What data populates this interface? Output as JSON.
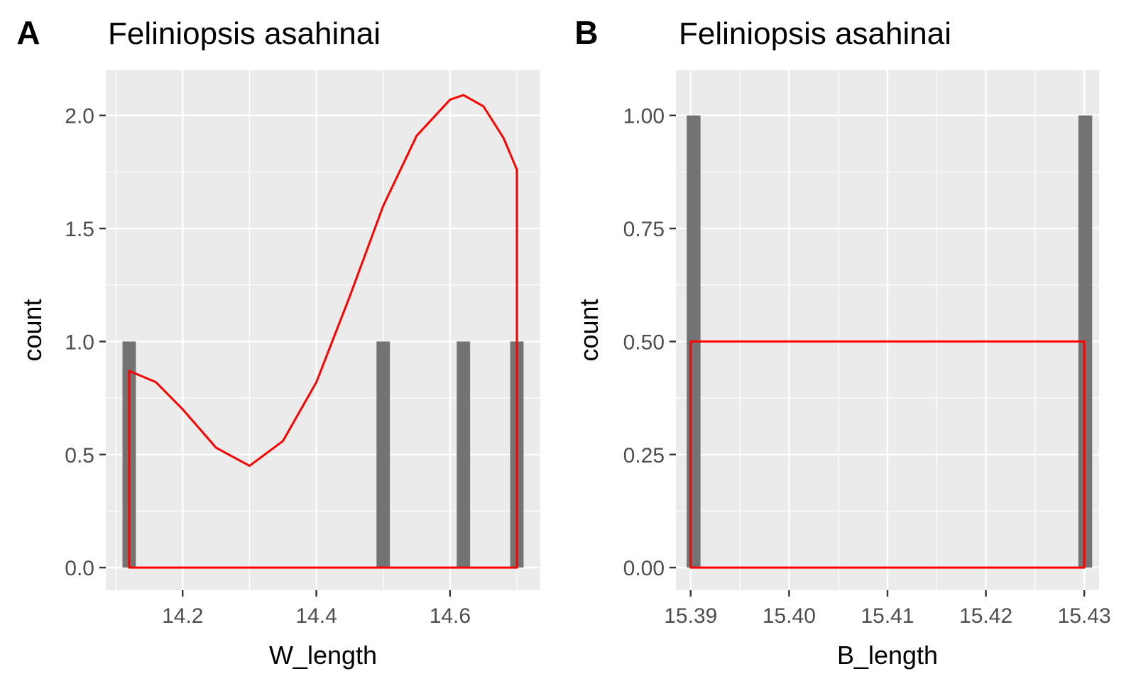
{
  "chart_data": [
    {
      "panel_tag": "A",
      "type": "bar",
      "title": "Feliniopsis asahinai",
      "xlabel": "W_length",
      "ylabel": "count",
      "xlim": [
        14.085,
        14.735
      ],
      "ylim": [
        -0.1,
        2.2
      ],
      "x_major_ticks": [
        14.2,
        14.4,
        14.6
      ],
      "x_tick_labels": [
        "14.2",
        "14.4",
        "14.6"
      ],
      "x_minor_ticks": [
        14.1,
        14.3,
        14.5,
        14.7
      ],
      "y_major_ticks": [
        0.0,
        0.5,
        1.0,
        1.5,
        2.0
      ],
      "y_tick_labels": [
        "0.0",
        "0.5",
        "1.0",
        "1.5",
        "2.0"
      ],
      "y_minor_ticks": [
        0.25,
        0.75,
        1.25,
        1.75
      ],
      "grid": true,
      "bar_width": 0.02,
      "bars": [
        {
          "x": 14.12,
          "count": 1
        },
        {
          "x": 14.5,
          "count": 1
        },
        {
          "x": 14.62,
          "count": 1
        },
        {
          "x": 14.7,
          "count": 1
        }
      ],
      "bar_color": "#737373",
      "overlay": {
        "type": "density",
        "color": "#ff0000",
        "x": [
          14.12,
          14.16,
          14.2,
          14.25,
          14.3,
          14.35,
          14.4,
          14.45,
          14.5,
          14.55,
          14.6,
          14.62,
          14.65,
          14.68,
          14.7
        ],
        "y": [
          0.87,
          0.82,
          0.7,
          0.53,
          0.45,
          0.56,
          0.82,
          1.2,
          1.6,
          1.91,
          2.07,
          2.09,
          2.04,
          1.9,
          1.76
        ]
      }
    },
    {
      "panel_tag": "B",
      "type": "bar",
      "title": "Feliniopsis asahinai",
      "xlabel": "B_length",
      "ylabel": "count",
      "xlim": [
        15.3885,
        15.4315
      ],
      "ylim": [
        -0.05,
        1.1
      ],
      "x_major_ticks": [
        15.39,
        15.4,
        15.41,
        15.42,
        15.43
      ],
      "x_tick_labels": [
        "15.39",
        "15.40",
        "15.41",
        "15.42",
        "15.43"
      ],
      "x_minor_ticks": [
        15.395,
        15.405,
        15.415,
        15.425
      ],
      "y_major_ticks": [
        0.0,
        0.25,
        0.5,
        0.75,
        1.0
      ],
      "y_tick_labels": [
        "0.00",
        "0.25",
        "0.50",
        "0.75",
        "1.00"
      ],
      "y_minor_ticks": [
        0.125,
        0.375,
        0.625,
        0.875
      ],
      "grid": true,
      "bar_width": 0.0014,
      "bars": [
        {
          "x": 15.3903,
          "count": 1
        },
        {
          "x": 15.4301,
          "count": 1
        }
      ],
      "bar_color": "#737373",
      "overlay": {
        "type": "density",
        "color": "#ff0000",
        "x": [
          15.39,
          15.43
        ],
        "y": [
          0.5,
          0.5
        ]
      }
    }
  ]
}
